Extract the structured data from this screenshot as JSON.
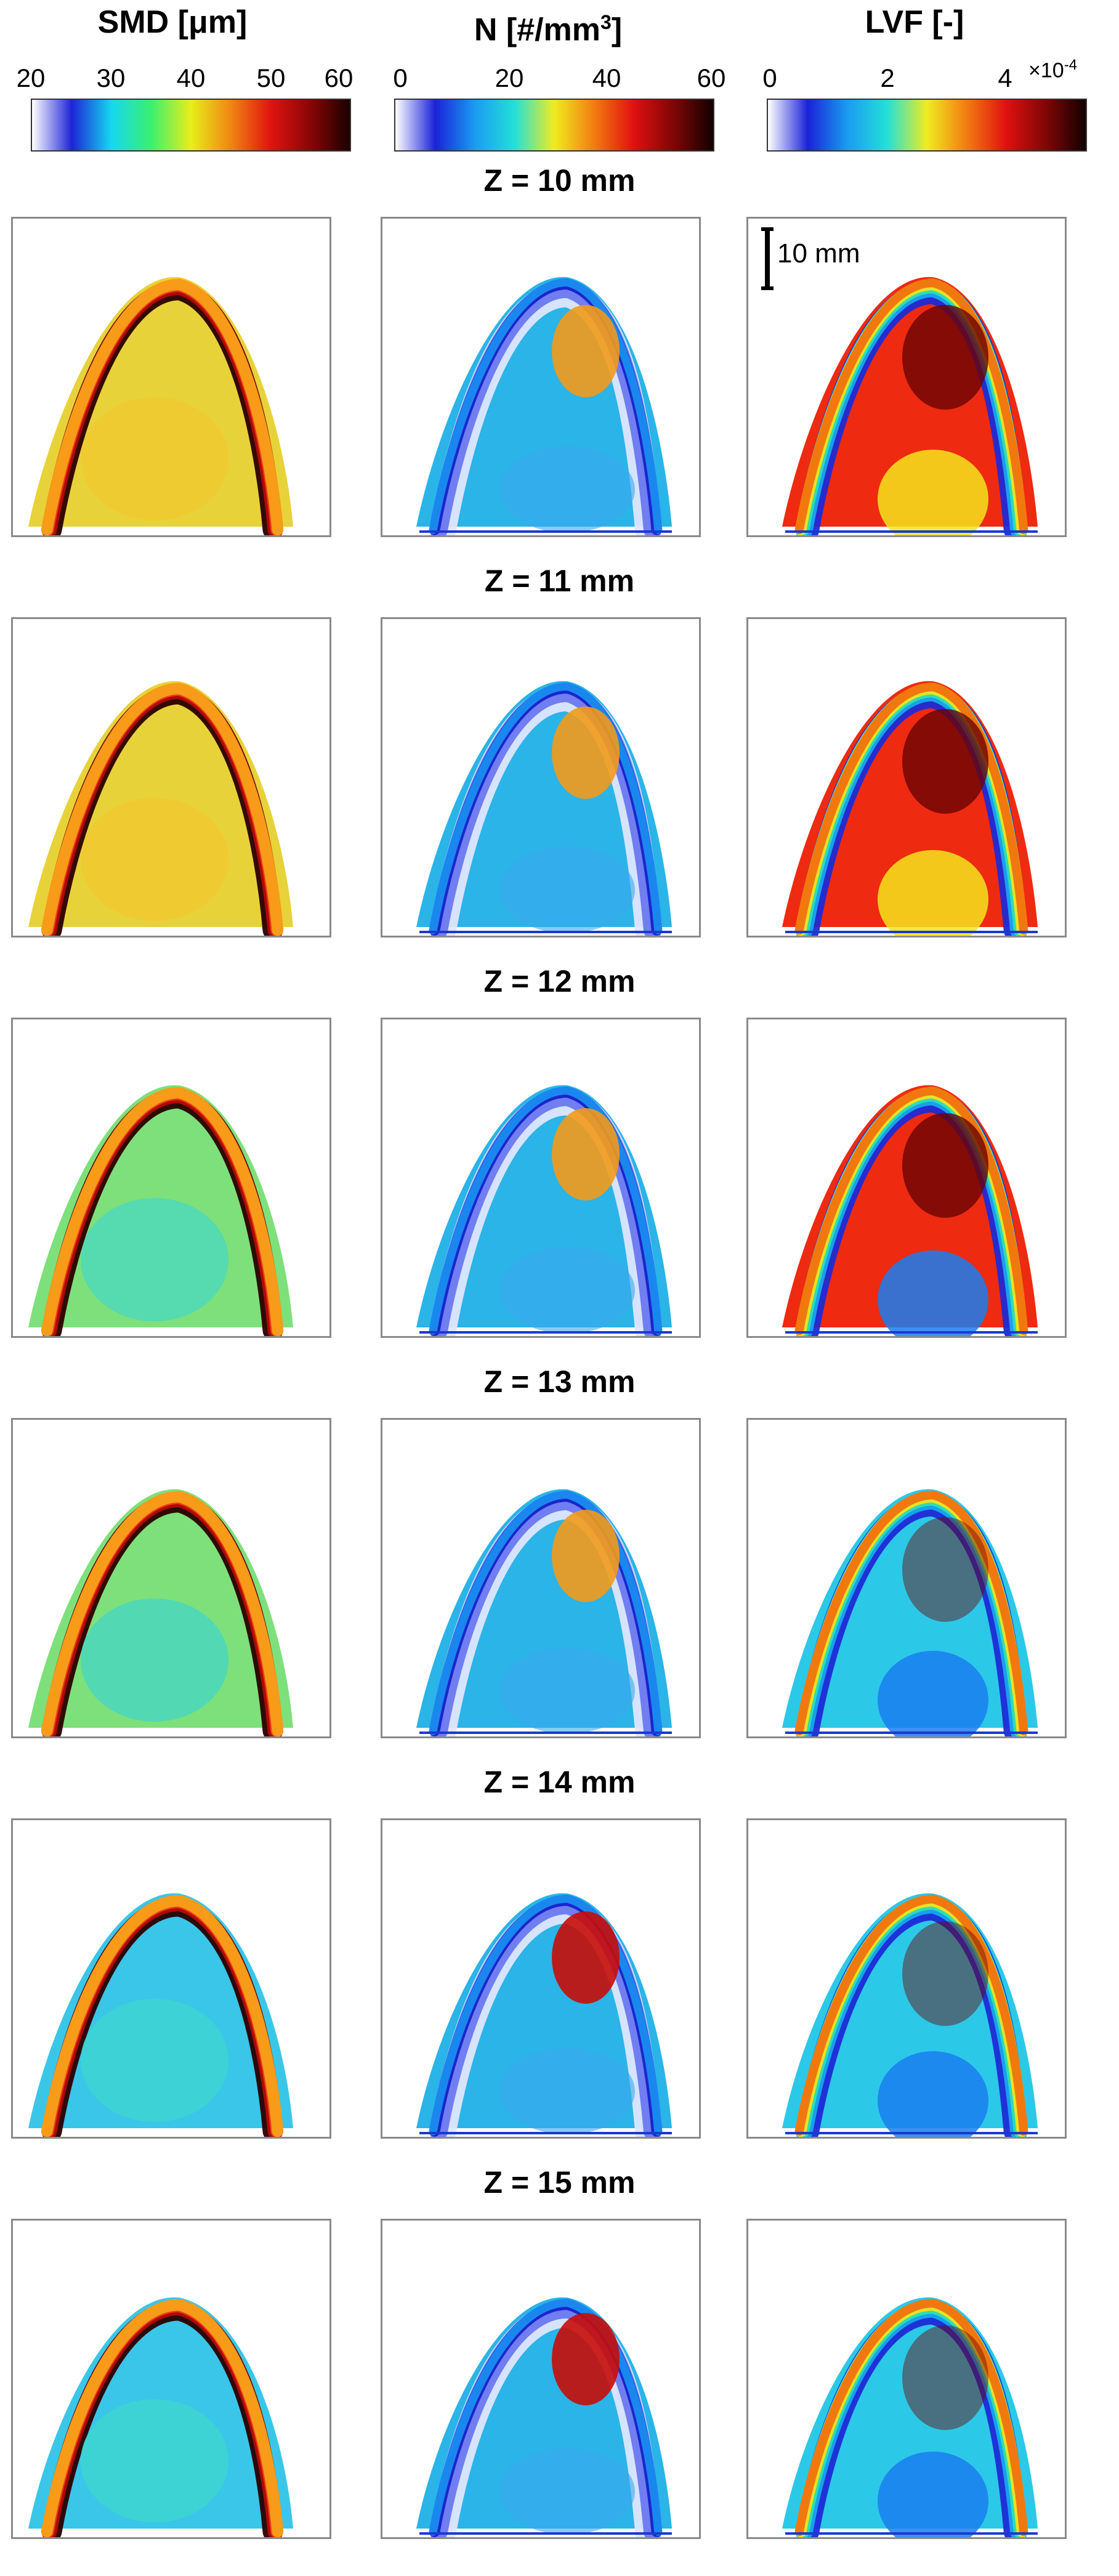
{
  "columns": [
    {
      "title": "SMD [μm]",
      "colorbar": {
        "ticks": [
          "20",
          "30",
          "40",
          "50",
          "60"
        ],
        "tick_fractions": [
          0.0,
          0.25,
          0.5,
          0.75,
          1.0
        ],
        "stops": [
          "#ffffff",
          "#1e24d6",
          "#16d8f0",
          "#3af070",
          "#e8ee1a",
          "#f08612",
          "#e11410",
          "#8a0606",
          "#1a0000"
        ],
        "exponent": ""
      }
    },
    {
      "title_main": "N [#/mm",
      "title_sup": "3",
      "title_end": "]",
      "colorbar": {
        "ticks": [
          "0",
          "20",
          "40",
          "60"
        ],
        "tick_fractions": [
          0.0,
          0.333,
          0.667,
          1.0
        ],
        "stops": [
          "#ffffff",
          "#1a22d8",
          "#1a9cf0",
          "#22e0d8",
          "#f0ec20",
          "#f27c10",
          "#e01010",
          "#800606",
          "#120000"
        ],
        "exponent": ""
      }
    },
    {
      "title": "LVF [-]",
      "colorbar": {
        "ticks": [
          "0",
          "2",
          "4"
        ],
        "tick_fractions": [
          0.0,
          0.4,
          0.8
        ],
        "stops": [
          "#ffffff",
          "#1a22d8",
          "#1a9cf0",
          "#22e0d8",
          "#f0ec20",
          "#f27c10",
          "#e01010",
          "#800606",
          "#120000"
        ],
        "exponent_base": "×10",
        "exponent_power": "-4"
      }
    }
  ],
  "scale_bar_label": "10 mm",
  "rows": [
    {
      "label": "Z = 10 mm"
    },
    {
      "label": "Z = 11 mm"
    },
    {
      "label": "Z = 12 mm"
    },
    {
      "label": "Z = 13 mm"
    },
    {
      "label": "Z = 14 mm"
    },
    {
      "label": "Z = 15 mm"
    }
  ]
}
